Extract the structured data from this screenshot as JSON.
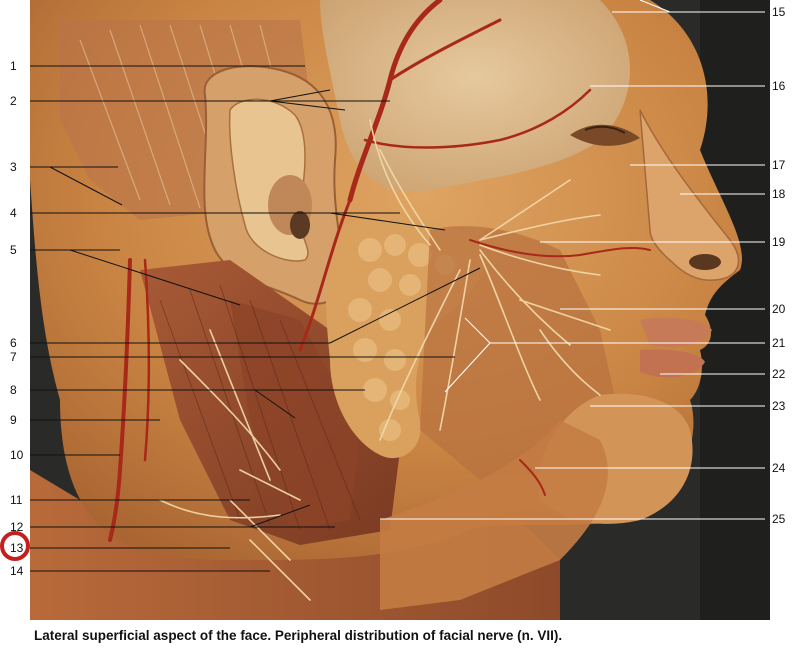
{
  "labels_left": [
    "1",
    "2",
    "3",
    "4",
    "5",
    "6",
    "7",
    "8",
    "9",
    "10",
    "11",
    "12",
    "13",
    "14"
  ],
  "labels_right": [
    "15",
    "16",
    "17",
    "18",
    "19",
    "20",
    "21",
    "22",
    "23",
    "24",
    "25"
  ],
  "highlighted_label": "13",
  "caption": "Lateral superficial aspect of the face. Peripheral distribution of facial nerve (n. VII).",
  "colors": {
    "background": "#2a2a28",
    "tissue": "#c98a4a",
    "muscle": "#9a4a2e",
    "gland": "#d9a05e",
    "vessel": "#a8281a",
    "nerve": "#f2d8a8",
    "marker": "#c41e1e"
  }
}
